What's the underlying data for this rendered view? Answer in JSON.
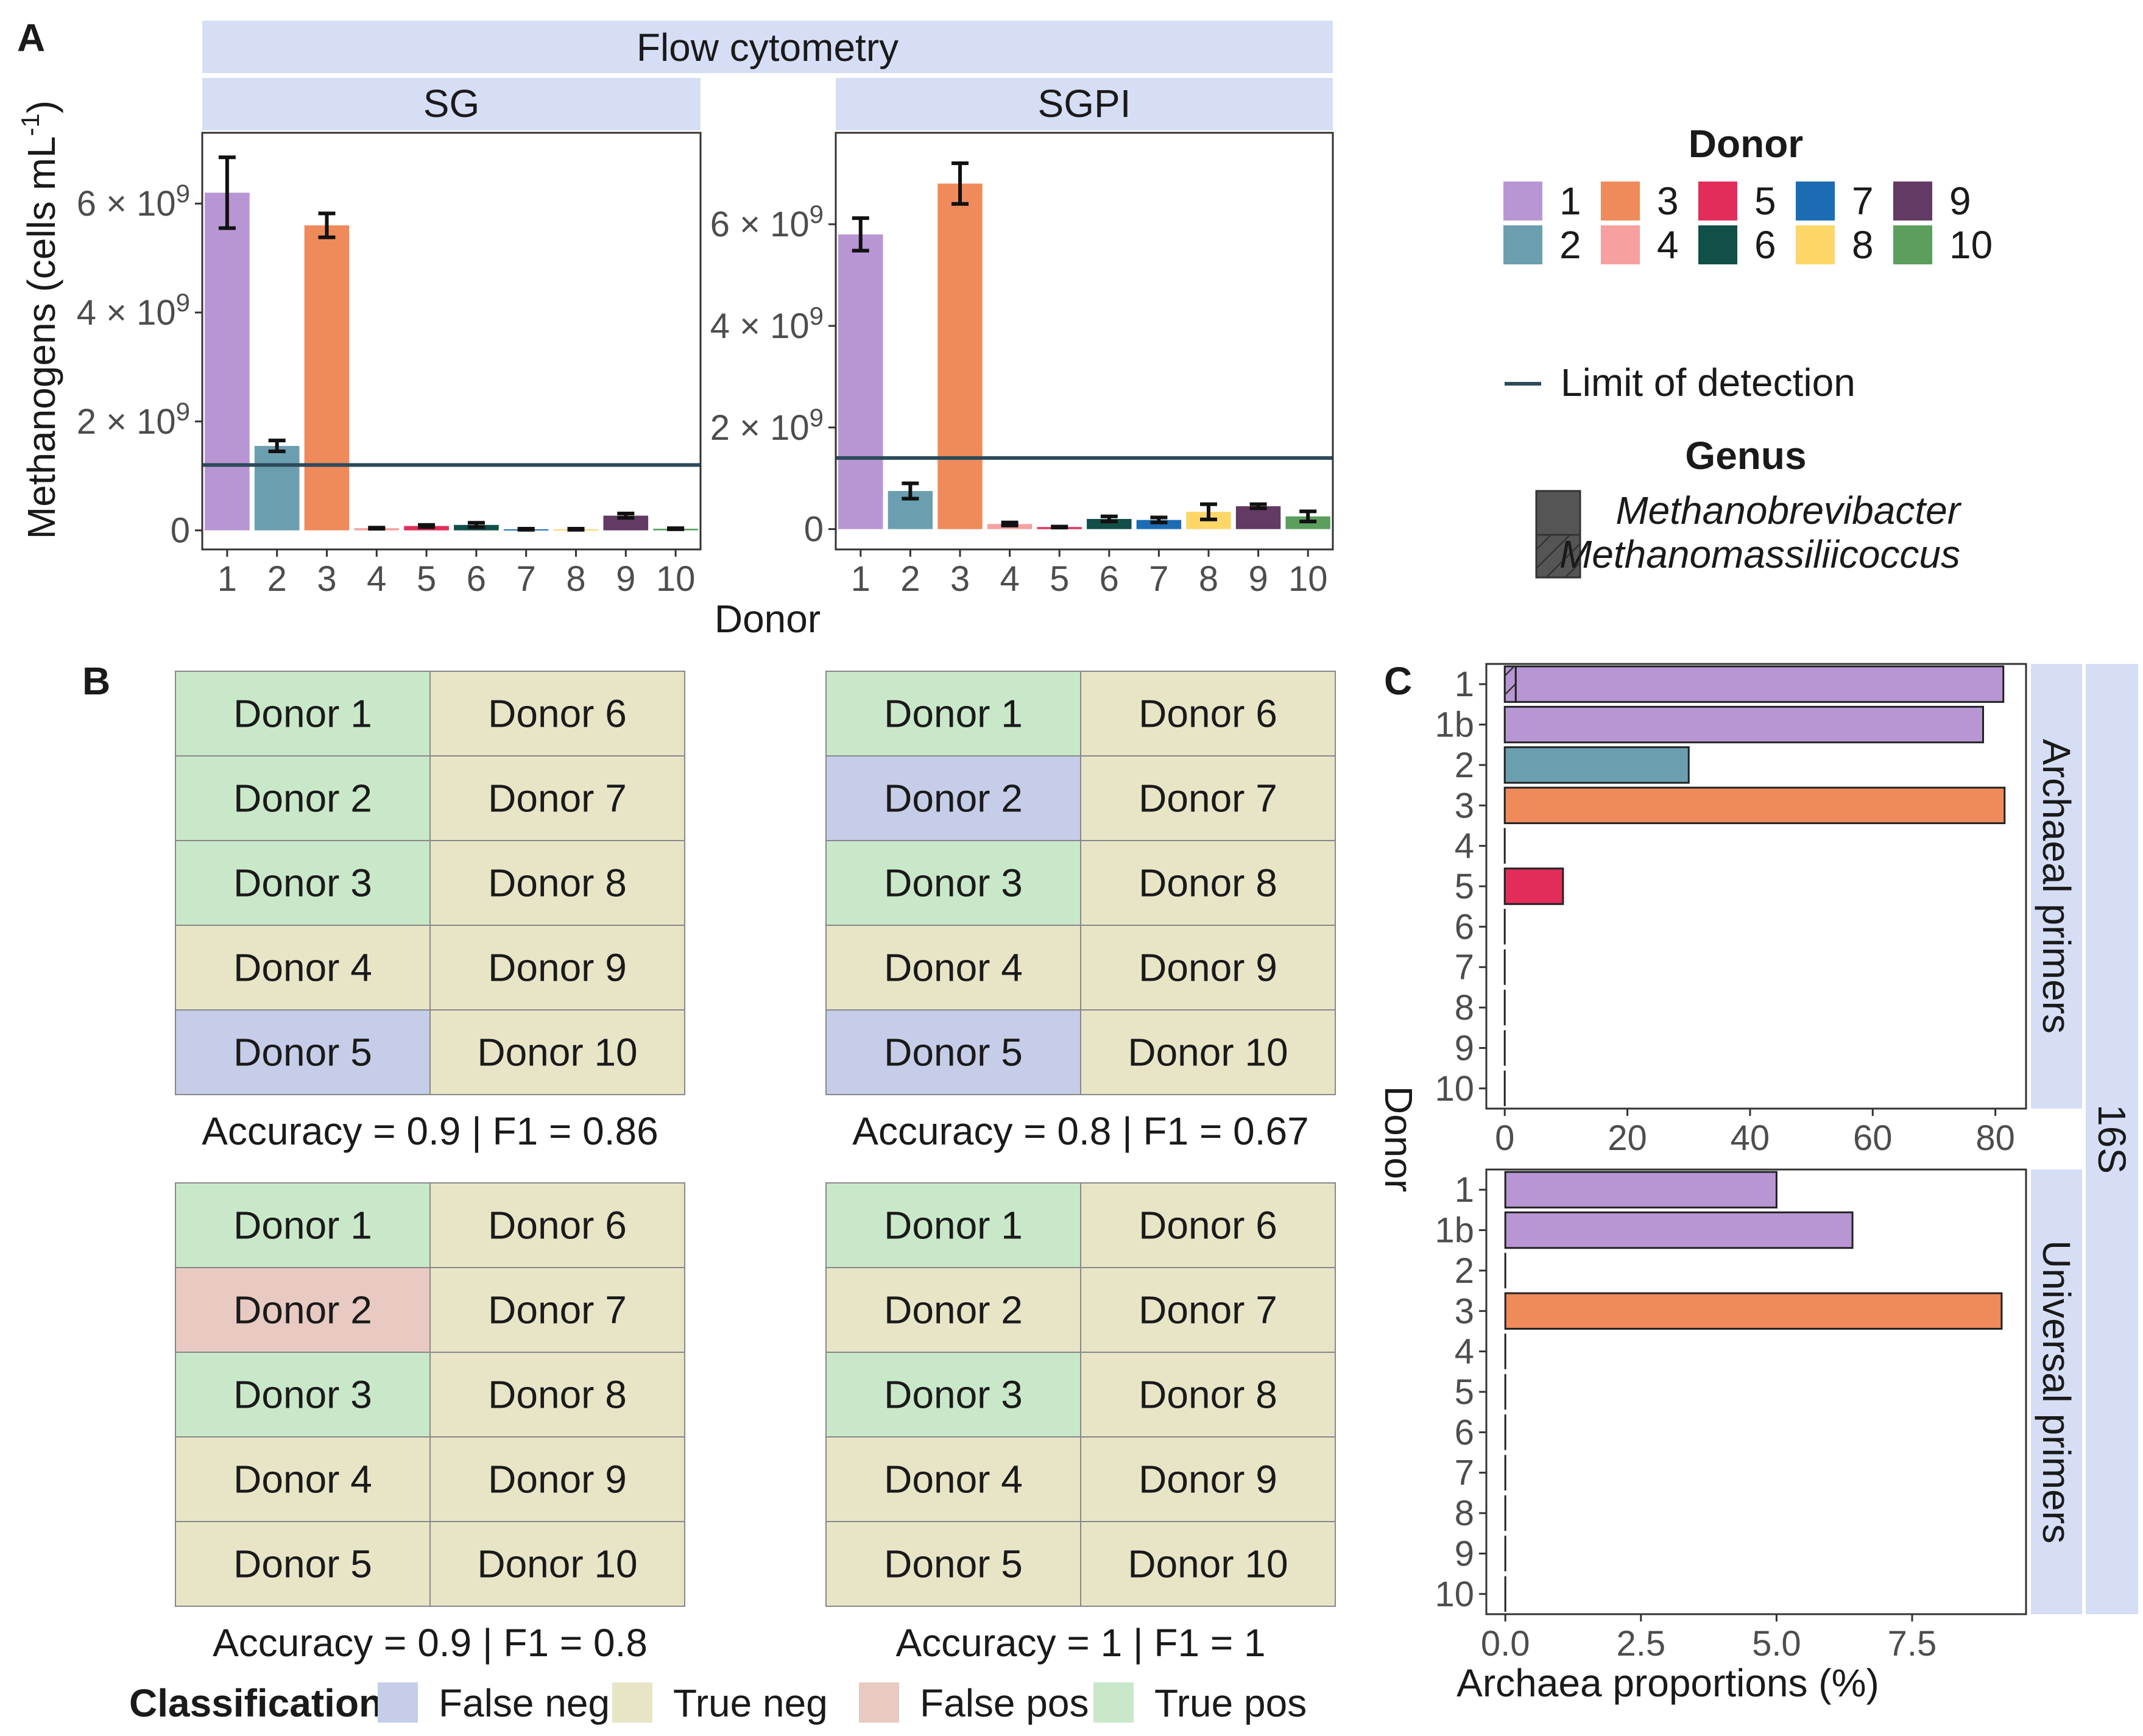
{
  "colors": {
    "donors": [
      "#b896d4",
      "#6b9fb0",
      "#ef8a5a",
      "#f6a0a0",
      "#e22d5a",
      "#114f48",
      "#1c6cb4",
      "#fcd667",
      "#623a63",
      "#5c9e5d"
    ],
    "strip": "#d5def5",
    "lod_line": "#2c4a5a",
    "false_neg": "#c5cde8",
    "true_neg": "#e8e5c7",
    "false_pos": "#e8cac2",
    "true_pos": "#c9e8c9"
  },
  "panel_labels": {
    "a": "A",
    "b": "B",
    "c": "C"
  },
  "chart_data": [
    {
      "type": "bar",
      "panel": "A",
      "facet": "SG",
      "strip_title": "Flow cytometry",
      "xlabel": "Donor",
      "ylabel_main": "Methanogens (cells mL",
      "ylabel_sup": "-1",
      "ylabel_close": ")",
      "categories": [
        "1",
        "2",
        "3",
        "4",
        "5",
        "6",
        "7",
        "8",
        "9",
        "10"
      ],
      "values": [
        6200000000.0,
        1550000000.0,
        5600000000.0,
        40000000.0,
        80000000.0,
        100000000.0,
        20000000.0,
        20000000.0,
        270000000.0,
        30000000.0
      ],
      "errors": [
        650000000.0,
        100000000.0,
        220000000.0,
        10000000.0,
        20000000.0,
        40000000.0,
        10000000.0,
        10000000.0,
        40000000.0,
        10000000.0
      ],
      "ylim": [
        -350000000.0,
        7300000000.0
      ],
      "yticks": [
        0,
        2000000000.0,
        4000000000.0,
        6000000000.0
      ],
      "ytick_mantissa": [
        "0",
        "2 × 10",
        "4 × 10",
        "6 × 10"
      ],
      "ytick_exponent": [
        "",
        "9",
        "9",
        "9"
      ],
      "limit_of_detection": 1200000000.0
    },
    {
      "type": "bar",
      "panel": "A",
      "facet": "SGPI",
      "xlabel": "Donor",
      "categories": [
        "1",
        "2",
        "3",
        "4",
        "5",
        "6",
        "7",
        "8",
        "9",
        "10"
      ],
      "values": [
        5800000000.0,
        750000000.0,
        6800000000.0,
        100000000.0,
        40000000.0,
        200000000.0,
        180000000.0,
        340000000.0,
        450000000.0,
        250000000.0
      ],
      "errors": [
        320000000.0,
        150000000.0,
        400000000.0,
        30000000.0,
        10000000.0,
        50000000.0,
        50000000.0,
        150000000.0,
        40000000.0,
        100000000.0
      ],
      "ylim": [
        -400000000.0,
        7800000000.0
      ],
      "yticks": [
        0,
        2000000000.0,
        4000000000.0,
        6000000000.0
      ],
      "ytick_mantissa": [
        "0",
        "2 × 10",
        "4 × 10",
        "6 × 10"
      ],
      "ytick_exponent": [
        "",
        "9",
        "9",
        "9"
      ],
      "limit_of_detection": 1400000000.0
    },
    {
      "type": "bar",
      "orientation": "horizontal",
      "panel": "C",
      "facet": "Archaeal primers",
      "outer_strip": "16S",
      "ylabel": "Donor",
      "categories": [
        "1",
        "1b",
        "2",
        "3",
        "4",
        "5",
        "6",
        "7",
        "8",
        "9",
        "10"
      ],
      "donor_color_index": [
        0,
        0,
        1,
        2,
        3,
        4,
        5,
        6,
        7,
        8,
        9
      ],
      "methanobrevibacter": [
        79.5,
        78,
        30,
        81.5,
        0,
        9.5,
        0,
        0,
        0,
        0,
        0
      ],
      "methanomassiliicoccus": [
        1.8,
        0,
        0,
        0,
        0,
        0,
        0,
        0,
        0,
        0,
        0
      ],
      "xlim": [
        -3,
        85
      ],
      "xticks": [
        0,
        20,
        40,
        60,
        80
      ],
      "xtick_labels": [
        "0",
        "20",
        "40",
        "60",
        "80"
      ]
    },
    {
      "type": "bar",
      "orientation": "horizontal",
      "panel": "C",
      "facet": "Universal primers",
      "xlabel": "Archaea proportions  (%)",
      "categories": [
        "1",
        "1b",
        "2",
        "3",
        "4",
        "5",
        "6",
        "7",
        "8",
        "9",
        "10"
      ],
      "donor_color_index": [
        0,
        0,
        1,
        2,
        3,
        4,
        5,
        6,
        7,
        8,
        9
      ],
      "methanobrevibacter": [
        5.0,
        6.4,
        0,
        9.15,
        0,
        0,
        0,
        0,
        0,
        0,
        0
      ],
      "methanomassiliicoccus": [
        0,
        0,
        0,
        0,
        0,
        0,
        0,
        0,
        0,
        0,
        0
      ],
      "xlim": [
        -0.35,
        9.6
      ],
      "xticks": [
        0,
        2.5,
        5,
        7.5
      ],
      "xtick_labels": [
        "0.0",
        "2.5",
        "5.0",
        "7.5"
      ]
    }
  ],
  "legend": {
    "donor_title": "Donor",
    "donors": [
      "1",
      "2",
      "3",
      "4",
      "5",
      "6",
      "7",
      "8",
      "9",
      "10"
    ],
    "lod_label": "Limit of detection",
    "genus_title": "Genus",
    "genus_1": "Methanobrevibacter",
    "genus_2": "Methanomassiliicoccus"
  },
  "confusion": {
    "grids": [
      {
        "cells": [
          "Donor 1",
          "Donor 2",
          "Donor 3",
          "Donor 4",
          "Donor 5",
          "Donor 6",
          "Donor 7",
          "Donor 8",
          "Donor 9",
          "Donor 10"
        ],
        "classes": [
          "true_pos",
          "true_pos",
          "true_pos",
          "true_neg",
          "false_neg",
          "true_neg",
          "true_neg",
          "true_neg",
          "true_neg",
          "true_neg"
        ],
        "caption": "Accuracy = 0.9 | F1 = 0.86"
      },
      {
        "cells": [
          "Donor 1",
          "Donor 2",
          "Donor 3",
          "Donor 4",
          "Donor 5",
          "Donor 6",
          "Donor 7",
          "Donor 8",
          "Donor 9",
          "Donor 10"
        ],
        "classes": [
          "true_pos",
          "false_neg",
          "true_pos",
          "true_neg",
          "false_neg",
          "true_neg",
          "true_neg",
          "true_neg",
          "true_neg",
          "true_neg"
        ],
        "caption": "Accuracy = 0.8 | F1 = 0.67"
      },
      {
        "cells": [
          "Donor 1",
          "Donor 2",
          "Donor 3",
          "Donor 4",
          "Donor 5",
          "Donor 6",
          "Donor 7",
          "Donor 8",
          "Donor 9",
          "Donor 10"
        ],
        "classes": [
          "true_pos",
          "false_pos",
          "true_pos",
          "true_neg",
          "true_neg",
          "true_neg",
          "true_neg",
          "true_neg",
          "true_neg",
          "true_neg"
        ],
        "caption": "Accuracy = 0.9 | F1 = 0.8"
      },
      {
        "cells": [
          "Donor 1",
          "Donor 2",
          "Donor 3",
          "Donor 4",
          "Donor 5",
          "Donor 6",
          "Donor 7",
          "Donor 8",
          "Donor 9",
          "Donor 10"
        ],
        "classes": [
          "true_pos",
          "true_neg",
          "true_pos",
          "true_neg",
          "true_neg",
          "true_neg",
          "true_neg",
          "true_neg",
          "true_neg",
          "true_neg"
        ],
        "caption": "Accuracy = 1 | F1 = 1"
      }
    ],
    "legend_title": "Classification",
    "legend_items": [
      {
        "key": "false_neg",
        "label": "False neg"
      },
      {
        "key": "true_neg",
        "label": "True neg"
      },
      {
        "key": "false_pos",
        "label": "False pos"
      },
      {
        "key": "true_pos",
        "label": "True pos"
      }
    ]
  }
}
